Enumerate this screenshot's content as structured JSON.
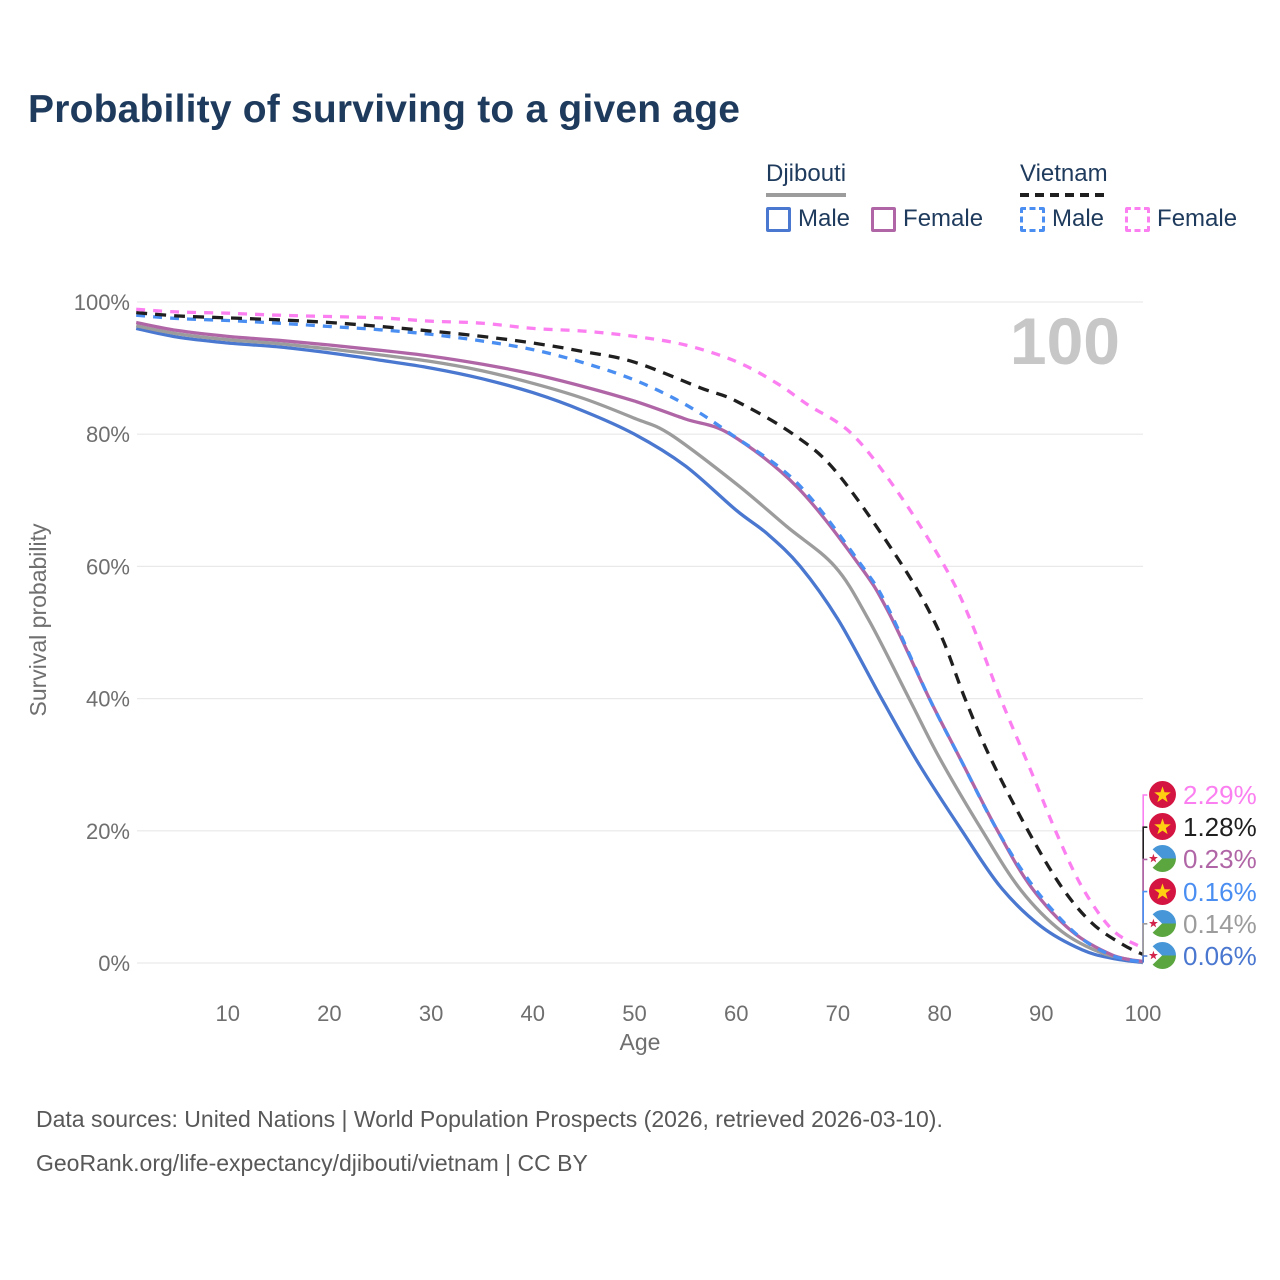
{
  "title": "Probability of surviving to a given age",
  "age_indicator": "100",
  "legend": {
    "groups": [
      {
        "country": "Djibouti",
        "line_color": "#9c9c9c",
        "line_style": "solid",
        "items": [
          {
            "label": "Male",
            "color": "#4a77cf",
            "style": "solid"
          },
          {
            "label": "Female",
            "color": "#b066a6",
            "style": "solid"
          }
        ]
      },
      {
        "country": "Vietnam",
        "line_color": "#1f1f1f",
        "line_style": "dashed",
        "items": [
          {
            "label": "Male",
            "color": "#4a8ef2",
            "style": "dashed"
          },
          {
            "label": "Female",
            "color": "#fb7ff0",
            "style": "dashed"
          }
        ]
      }
    ]
  },
  "chart_data": {
    "type": "line",
    "title": "Probability of surviving to a given age",
    "xlabel": "Age",
    "ylabel": "Survival probability",
    "xlim": [
      0,
      100
    ],
    "ylim": [
      0,
      100
    ],
    "grid": "horizontal",
    "x_ticks": [
      10,
      20,
      30,
      40,
      50,
      60,
      70,
      80,
      90,
      100
    ],
    "y_ticks": [
      {
        "v": 0,
        "label": "0%"
      },
      {
        "v": 20,
        "label": "20%"
      },
      {
        "v": 40,
        "label": "40%"
      },
      {
        "v": 60,
        "label": "60%"
      },
      {
        "v": 80,
        "label": "80%"
      },
      {
        "v": 100,
        "label": "100%"
      }
    ],
    "series": [
      {
        "name": "Djibouti Male",
        "country": "Djibouti",
        "sex": "Male",
        "color": "#4a77cf",
        "dash": "none",
        "end_label": "0.06%",
        "points": [
          [
            1,
            96.0
          ],
          [
            5,
            94.7
          ],
          [
            10,
            93.8
          ],
          [
            15,
            93.2
          ],
          [
            20,
            92.3
          ],
          [
            25,
            91.2
          ],
          [
            30,
            90.0
          ],
          [
            35,
            88.4
          ],
          [
            40,
            86.3
          ],
          [
            45,
            83.5
          ],
          [
            50,
            80.0
          ],
          [
            55,
            75.2
          ],
          [
            60,
            68.5
          ],
          [
            63,
            65.0
          ],
          [
            66.3,
            60.0
          ],
          [
            70,
            52.0
          ],
          [
            74.3,
            40.0
          ],
          [
            78,
            30.0
          ],
          [
            82.2,
            20.0
          ],
          [
            86,
            11.5
          ],
          [
            90,
            5.5
          ],
          [
            94,
            2.0
          ],
          [
            97,
            0.7
          ],
          [
            100,
            0.06
          ]
        ]
      },
      {
        "name": "Djibouti",
        "country": "Djibouti",
        "sex": "Both",
        "color": "#9c9c9c",
        "dash": "none",
        "end_label": "0.14%",
        "points": [
          [
            1,
            96.4
          ],
          [
            5,
            95.2
          ],
          [
            10,
            94.3
          ],
          [
            15,
            93.7
          ],
          [
            20,
            92.9
          ],
          [
            25,
            92.0
          ],
          [
            30,
            91.0
          ],
          [
            35,
            89.6
          ],
          [
            40,
            87.7
          ],
          [
            45,
            85.4
          ],
          [
            50,
            82.4
          ],
          [
            53.5,
            80.0
          ],
          [
            60,
            72.5
          ],
          [
            65,
            66.0
          ],
          [
            69.7,
            60.0
          ],
          [
            73,
            52.0
          ],
          [
            77,
            40.0
          ],
          [
            80,
            31.0
          ],
          [
            84.2,
            20.0
          ],
          [
            88,
            11.0
          ],
          [
            92,
            4.8
          ],
          [
            96,
            1.5
          ],
          [
            100,
            0.14
          ]
        ]
      },
      {
        "name": "Djibouti Female",
        "country": "Djibouti",
        "sex": "Female",
        "color": "#b066a6",
        "dash": "none",
        "end_label": "0.23%",
        "points": [
          [
            1,
            96.9
          ],
          [
            5,
            95.7
          ],
          [
            10,
            94.8
          ],
          [
            15,
            94.2
          ],
          [
            20,
            93.5
          ],
          [
            25,
            92.7
          ],
          [
            30,
            91.8
          ],
          [
            35,
            90.6
          ],
          [
            40,
            89.1
          ],
          [
            45,
            87.2
          ],
          [
            50,
            85.0
          ],
          [
            55,
            82.3
          ],
          [
            59.4,
            80.0
          ],
          [
            66,
            72.0
          ],
          [
            72.2,
            60.0
          ],
          [
            75,
            53.0
          ],
          [
            79,
            40.0
          ],
          [
            82,
            31.0
          ],
          [
            85.7,
            20.0
          ],
          [
            89,
            11.5
          ],
          [
            93,
            4.8
          ],
          [
            97,
            1.2
          ],
          [
            100,
            0.23
          ]
        ]
      },
      {
        "name": "Vietnam Male",
        "country": "Vietnam",
        "sex": "Male",
        "color": "#4a8ef2",
        "dash": "9 8",
        "end_label": "0.16%",
        "points": [
          [
            1,
            98.0
          ],
          [
            5,
            97.5
          ],
          [
            10,
            97.2
          ],
          [
            15,
            96.8
          ],
          [
            20,
            96.3
          ],
          [
            25,
            95.8
          ],
          [
            30,
            95.1
          ],
          [
            35,
            94.1
          ],
          [
            40,
            92.8
          ],
          [
            45,
            90.8
          ],
          [
            50,
            88.2
          ],
          [
            55,
            84.5
          ],
          [
            59.5,
            80.0
          ],
          [
            66,
            72.6
          ],
          [
            72.4,
            60.0
          ],
          [
            75,
            53.5
          ],
          [
            79,
            40.0
          ],
          [
            82,
            31.0
          ],
          [
            85.7,
            20.0
          ],
          [
            89.5,
            11.0
          ],
          [
            93.5,
            4.3
          ],
          [
            97,
            1.1
          ],
          [
            100,
            0.16
          ]
        ]
      },
      {
        "name": "Vietnam",
        "country": "Vietnam",
        "sex": "Both",
        "color": "#1f1f1f",
        "dash": "11 8",
        "end_label": "1.28%",
        "points": [
          [
            1,
            98.4
          ],
          [
            5,
            97.9
          ],
          [
            10,
            97.6
          ],
          [
            15,
            97.3
          ],
          [
            20,
            96.9
          ],
          [
            25,
            96.3
          ],
          [
            30,
            95.6
          ],
          [
            35,
            94.8
          ],
          [
            40,
            93.8
          ],
          [
            45,
            92.5
          ],
          [
            50,
            90.9
          ],
          [
            56.5,
            87.0
          ],
          [
            60,
            85.0
          ],
          [
            65.6,
            80.0
          ],
          [
            70,
            74.0
          ],
          [
            76.4,
            60.0
          ],
          [
            80,
            50.0
          ],
          [
            82.5,
            40.0
          ],
          [
            85,
            31.0
          ],
          [
            88.7,
            20.0
          ],
          [
            92,
            11.5
          ],
          [
            95,
            6.0
          ],
          [
            98,
            2.8
          ],
          [
            100,
            1.28
          ]
        ]
      },
      {
        "name": "Vietnam Female",
        "country": "Vietnam",
        "sex": "Female",
        "color": "#fb7ff0",
        "dash": "9 8",
        "end_label": "2.29%",
        "points": [
          [
            1,
            98.9
          ],
          [
            5,
            98.5
          ],
          [
            10,
            98.3
          ],
          [
            15,
            98.0
          ],
          [
            20,
            97.8
          ],
          [
            25,
            97.6
          ],
          [
            30,
            97.1
          ],
          [
            35,
            96.8
          ],
          [
            40,
            96.0
          ],
          [
            45,
            95.6
          ],
          [
            50,
            94.8
          ],
          [
            55,
            93.5
          ],
          [
            60,
            91.0
          ],
          [
            64,
            87.7
          ],
          [
            67,
            84.5
          ],
          [
            71.4,
            80.0
          ],
          [
            76,
            71.0
          ],
          [
            80.5,
            60.0
          ],
          [
            83,
            52.0
          ],
          [
            86,
            40.0
          ],
          [
            89,
            29.0
          ],
          [
            91.4,
            20.0
          ],
          [
            94,
            11.5
          ],
          [
            97,
            5.0
          ],
          [
            100,
            2.29
          ]
        ]
      }
    ]
  },
  "end_labels": [
    {
      "value": "2.29%",
      "flag": "vietnam",
      "series": "Vietnam Female"
    },
    {
      "value": "1.28%",
      "flag": "vietnam",
      "series": "Vietnam"
    },
    {
      "value": "0.23%",
      "flag": "djibouti",
      "series": "Djibouti Female"
    },
    {
      "value": "0.16%",
      "flag": "vietnam",
      "series": "Vietnam Male"
    },
    {
      "value": "0.14%",
      "flag": "djibouti",
      "series": "Djibouti"
    },
    {
      "value": "0.06%",
      "flag": "djibouti",
      "series": "Djibouti Male"
    }
  ],
  "footer": {
    "line1": "Data sources: United Nations | World Population Prospects (2026, retrieved 2026-03-10).",
    "line2": "GeoRank.org/life-expectancy/djibouti/vietnam | CC BY"
  }
}
